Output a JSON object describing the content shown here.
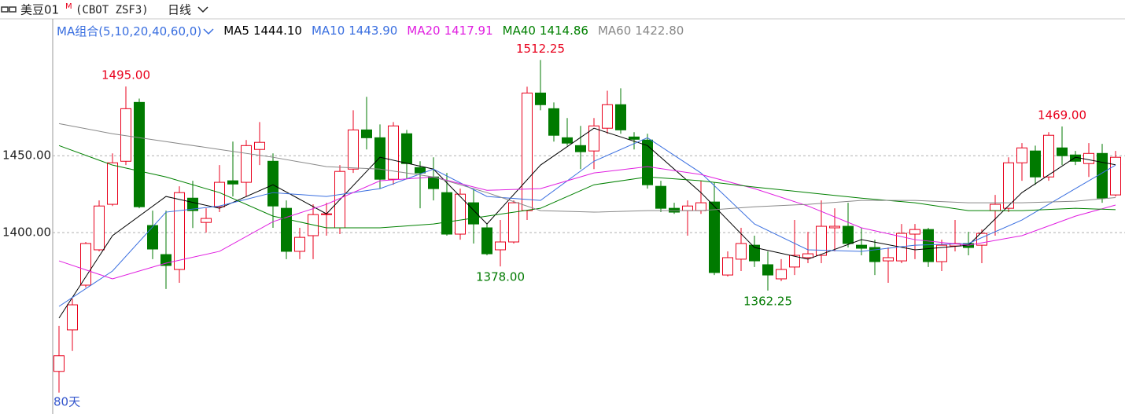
{
  "chart_data": {
    "type": "candlestick",
    "title": "美豆01",
    "title_sup": "M",
    "code": "(CBOT ZSF3)",
    "period": "日线",
    "ma_group": "MA组合(5,10,20,40,60,0)",
    "range_label": "80天",
    "up_color": "#e8001c",
    "down_color": "#007a00",
    "ylim": [
      1283,
      1537
    ],
    "yticks": [
      {
        "value": 1400,
        "label": "1400.00"
      },
      {
        "value": 1450,
        "label": "1450.00"
      }
    ],
    "grid": true,
    "open": [
      1309.7,
      1336.7,
      1365.8,
      1388.8,
      1418.4,
      1446.4,
      1484.7,
      1404.6,
      1385.7,
      1376,
      1422.4,
      1406.6,
      1416.8,
      1433.7,
      1432.7,
      1454.1,
      1446.4,
      1415.8,
      1387.8,
      1398,
      1411.7,
      1403.1,
      1441.3,
      1466.8,
      1461.7,
      1434.7,
      1464.3,
      1442.3,
      1436.2,
      1426,
      1399,
      1419.4,
      1403.1,
      1388.8,
      1393.9,
      1414.3,
      1490.8,
      1480.6,
      1461.7,
      1456.6,
      1453.1,
      1467.9,
      1483.2,
      1462.2,
      1460.2,
      1430.1,
      1415.8,
      1414.3,
      1414.3,
      1419.9,
      1372.4,
      1382.7,
      1391.8,
      1379.1,
      1369.9,
      1377.6,
      1383.7,
      1385.2,
      1403.1,
      1404.1,
      1391.8,
      1390.3,
      1381.6,
      1381.6,
      1399,
      1402,
      1381.1,
      1391.3,
      1392.9,
      1391.8,
      1414.3,
      1415.8,
      1445.4,
      1453.1,
      1436.2,
      1455.1,
      1450.5,
      1444.9,
      1451.5,
      1424.5
    ],
    "high": [
      1339.3,
      1357,
      1393.9,
      1420.9,
      1451.5,
      1495,
      1487.2,
      1414.3,
      1414.3,
      1430.1,
      1433.7,
      1415.8,
      1443.9,
      1459.2,
      1460.2,
      1471.9,
      1451.5,
      1420.9,
      1403.1,
      1418.4,
      1419.4,
      1443.9,
      1479.6,
      1488.3,
      1470.4,
      1471.9,
      1466.8,
      1446.4,
      1449,
      1438.8,
      1428.6,
      1428.6,
      1405.6,
      1408.2,
      1420.9,
      1494.9,
      1512.25,
      1484.7,
      1474.5,
      1469.4,
      1474.5,
      1492.3,
      1493.9,
      1465.3,
      1464.3,
      1433.7,
      1419.4,
      1420.9,
      1433.7,
      1432.7,
      1387.8,
      1403.1,
      1398,
      1387.8,
      1382.7,
      1408.2,
      1400.5,
      1420.9,
      1415.8,
      1419.4,
      1403.1,
      1395.4,
      1390.3,
      1405.6,
      1405.6,
      1403.1,
      1395.4,
      1408.2,
      1400.5,
      1402,
      1424.5,
      1449,
      1458.2,
      1456.6,
      1465.3,
      1469,
      1453.1,
      1458.2,
      1457.7,
      1453.1
    ],
    "low": [
      1295.9,
      1323,
      1364.3,
      1387.8,
      1417.3,
      1443.9,
      1415.8,
      1382.7,
      1363.3,
      1367.3,
      1403,
      1400,
      1413.3,
      1423.5,
      1423.5,
      1443.9,
      1403.1,
      1382.7,
      1382.7,
      1382.7,
      1398,
      1399,
      1438.8,
      1454.1,
      1428.6,
      1431.1,
      1434.7,
      1415.8,
      1420.9,
      1398,
      1395.4,
      1392.9,
      1385.2,
      1378,
      1392.9,
      1408.2,
      1479.6,
      1459.2,
      1456.6,
      1441.3,
      1441.3,
      1464.3,
      1464.3,
      1454.1,
      1428.6,
      1413.3,
      1412.2,
      1398,
      1412.2,
      1372.4,
      1371.4,
      1375,
      1377.6,
      1362.25,
      1368.4,
      1372.4,
      1380.1,
      1380.1,
      1387.8,
      1390.3,
      1385.2,
      1372.4,
      1367.3,
      1380.1,
      1382.7,
      1377.6,
      1375,
      1387.8,
      1385.2,
      1380.1,
      1398,
      1413.3,
      1433.7,
      1431.1,
      1433.7,
      1443.9,
      1443.9,
      1436.2,
      1419.4,
      1423.5
    ],
    "close": [
      1319.9,
      1353,
      1392.9,
      1417.3,
      1445.4,
      1480.6,
      1416.8,
      1389.3,
      1378.6,
      1426,
      1414.3,
      1409.2,
      1432.7,
      1431.6,
      1456.6,
      1458.7,
      1417.3,
      1387.8,
      1396.9,
      1411.7,
      1412.2,
      1439.8,
      1466.8,
      1461.7,
      1434.7,
      1469.4,
      1444.9,
      1438.8,
      1428.6,
      1399,
      1425,
      1405.6,
      1386.2,
      1393.9,
      1419.4,
      1490.8,
      1483.2,
      1463.3,
      1458.2,
      1452.6,
      1469.4,
      1483.2,
      1466.8,
      1460.7,
      1431.1,
      1415.8,
      1413.3,
      1417.3,
      1419.4,
      1374,
      1383.7,
      1392.9,
      1381.6,
      1372.4,
      1376,
      1385.2,
      1386.2,
      1404.1,
      1404.1,
      1392.9,
      1389.8,
      1381.1,
      1383.7,
      1399.5,
      1402,
      1381.1,
      1391.8,
      1392.9,
      1390.3,
      1399.5,
      1418.4,
      1445.4,
      1455.1,
      1436.2,
      1463.3,
      1450,
      1446.4,
      1451.5,
      1422.4,
      1449
    ],
    "annotations": [
      {
        "value": 1495,
        "label": "1495.00"
      },
      {
        "value": 1512.25,
        "label": "1512.25"
      },
      {
        "value": 1378,
        "label": "1378.00"
      },
      {
        "value": 1362.25,
        "label": "1362.25"
      },
      {
        "value": 1469,
        "label": "1469.00"
      }
    ],
    "ma_series": [
      {
        "name": "MA5",
        "color": "#000000",
        "last": {
          "value": 1444.1,
          "label": "1444.10"
        },
        "x": [
          0,
          4,
          8,
          12,
          16,
          20,
          24,
          28,
          32,
          36,
          40,
          44,
          48,
          52,
          56,
          60,
          64,
          68,
          72,
          76,
          79
        ],
        "values": [
          1344.4,
          1398,
          1423.5,
          1415.8,
          1431.1,
          1412.2,
          1449,
          1441.3,
          1405.6,
          1443.9,
          1467.9,
          1456.6,
          1426,
          1390.3,
          1382.7,
          1395.4,
          1388.8,
          1391.8,
          1426,
          1449,
          1444.1
        ]
      },
      {
        "name": "MA10",
        "color": "#3a6fe0",
        "last": {
          "value": 1443.9,
          "label": "1443.90"
        },
        "x": [
          0,
          4,
          8,
          12,
          16,
          20,
          24,
          28,
          32,
          36,
          40,
          44,
          48,
          52,
          56,
          60,
          64,
          68,
          72,
          76,
          79
        ],
        "values": [
          1352,
          1375,
          1413.3,
          1417.3,
          1426,
          1423.5,
          1428.6,
          1441.3,
          1423.5,
          1420.9,
          1446.4,
          1461.7,
          1438.8,
          1405.6,
          1388.8,
          1387.8,
          1391.8,
          1392.9,
          1408.2,
          1428.6,
          1443.9
        ]
      },
      {
        "name": "MA20",
        "color": "#e01ee0",
        "last": {
          "value": 1417.91,
          "label": "1417.91"
        },
        "x": [
          0,
          4,
          8,
          12,
          16,
          20,
          24,
          28,
          32,
          36,
          40,
          44,
          48,
          52,
          56,
          60,
          64,
          68,
          72,
          76,
          79
        ],
        "values": [
          1381.6,
          1369.9,
          1380.1,
          1387.8,
          1407.1,
          1418.4,
          1433.7,
          1436.2,
          1427.5,
          1428.6,
          1438.8,
          1442.9,
          1437.8,
          1428.6,
          1417.3,
          1403.1,
          1395.4,
          1391.8,
          1398,
          1410.7,
          1417.9
        ]
      },
      {
        "name": "MA40",
        "color": "#008000",
        "last": {
          "value": 1414.86,
          "label": "1414.86"
        },
        "x": [
          0,
          4,
          8,
          12,
          16,
          20,
          24,
          28,
          32,
          36,
          40,
          44,
          48,
          52,
          56,
          60,
          64,
          68,
          72,
          76,
          79
        ],
        "values": [
          1456.6,
          1443.9,
          1436.2,
          1426,
          1410.7,
          1403.1,
          1403.1,
          1405.6,
          1410.7,
          1415.8,
          1431.1,
          1436.2,
          1433.7,
          1429.6,
          1426,
          1422.4,
          1419.4,
          1414.3,
          1414.3,
          1415.8,
          1414.9
        ]
      },
      {
        "name": "MA60",
        "color": "#888888",
        "last": {
          "value": 1422.8,
          "label": "1422.80"
        },
        "x": [
          0,
          4,
          8,
          12,
          16,
          20,
          24,
          28,
          32,
          36,
          40,
          44,
          48,
          52,
          56,
          60,
          64,
          68,
          72,
          76,
          79
        ],
        "values": [
          1470.9,
          1464.3,
          1459.2,
          1454.1,
          1449,
          1442.9,
          1441.3,
          1436.2,
          1426,
          1414.3,
          1413.3,
          1414.3,
          1414.3,
          1416.8,
          1418.4,
          1420.9,
          1420.9,
          1419.4,
          1419.4,
          1420.4,
          1422.8
        ]
      }
    ]
  }
}
